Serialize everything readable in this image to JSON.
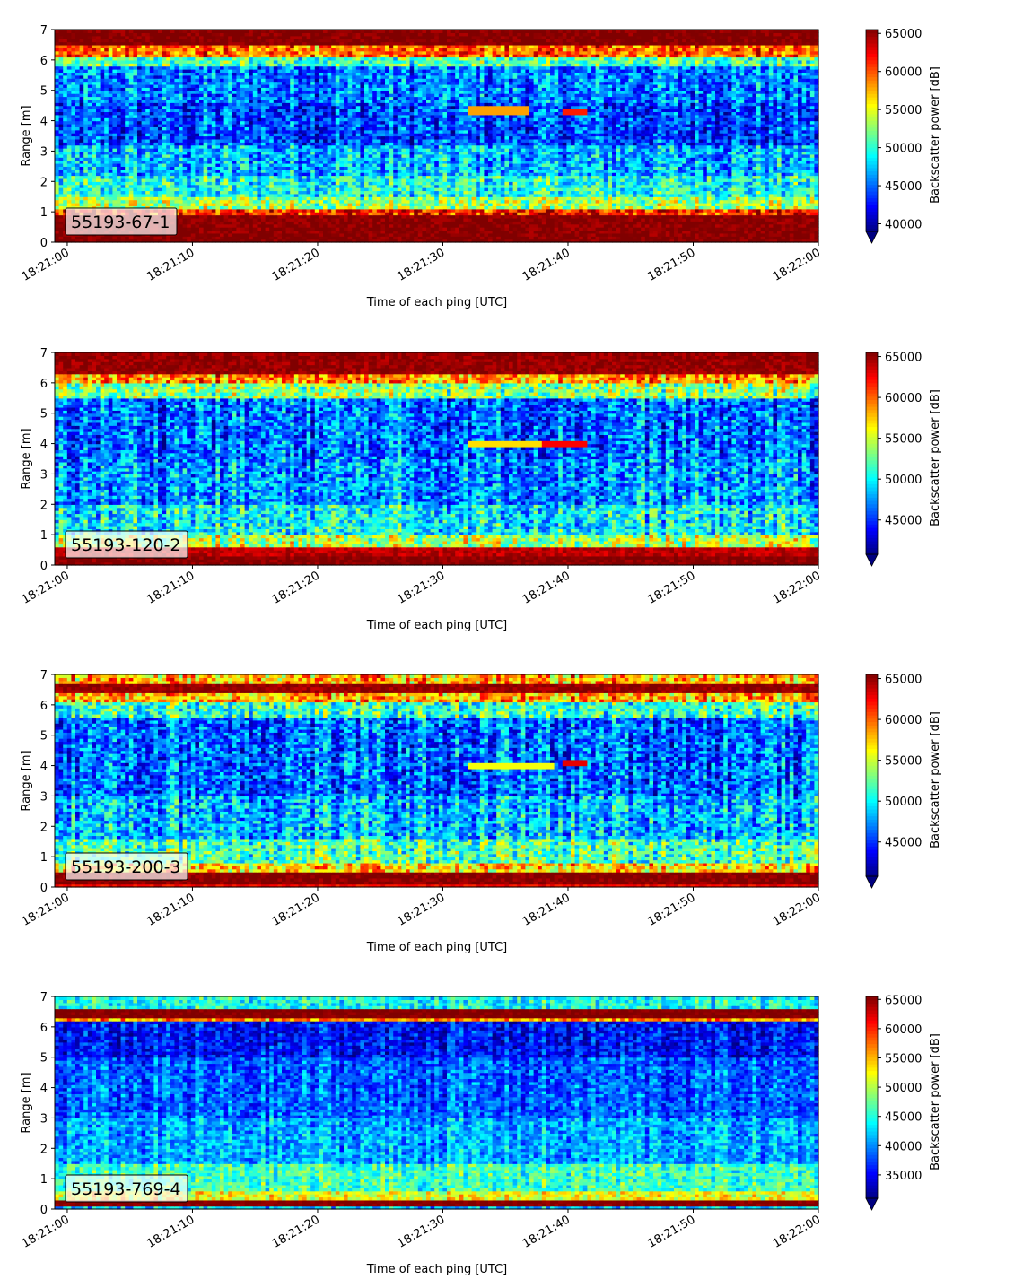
{
  "chart_data": [
    {
      "type": "heatmap",
      "label": "55193-67-1",
      "xlabel": "Time of each ping [UTC]",
      "ylabel": "Range [m]",
      "x_tick_labels": [
        "18:21:00",
        "18:21:10",
        "18:21:20",
        "18:21:30",
        "18:21:40",
        "18:21:50",
        "18:22:00"
      ],
      "y_tick_labels": [
        "0",
        "1",
        "2",
        "3",
        "4",
        "5",
        "6",
        "7"
      ],
      "xlim": [
        "18:20:59",
        "18:22:00"
      ],
      "ylim": [
        0,
        7
      ],
      "colorbar": {
        "label": "Backscatter power [dB]",
        "tick_labels": [
          "40000",
          "45000",
          "50000",
          "55000",
          "60000",
          "65000"
        ],
        "ticks": [
          40000,
          45000,
          50000,
          55000,
          60000,
          65000
        ],
        "vmin": 39000,
        "vmax": 65500,
        "extend": "min",
        "colormap": "jet"
      },
      "bands": [
        {
          "range": [
            0,
            0.25
          ],
          "value": 65000
        },
        {
          "range": [
            0.25,
            0.95
          ],
          "value": 64800
        },
        {
          "range": [
            0.95,
            1.15
          ],
          "value": 61500
        },
        {
          "range": [
            1.15,
            1.5
          ],
          "value": 53000
        },
        {
          "range": [
            1.5,
            2.2
          ],
          "value": 49500
        },
        {
          "range": [
            2.2,
            3.2
          ],
          "value": 47000
        },
        {
          "range": [
            3.2,
            4.6
          ],
          "value": 44000
        },
        {
          "range": [
            4.6,
            5.8
          ],
          "value": 45500
        },
        {
          "range": [
            5.8,
            6.1
          ],
          "value": 51000
        },
        {
          "range": [
            6.1,
            6.5
          ],
          "value": 59500
        },
        {
          "range": [
            6.5,
            7
          ],
          "value": 65000
        }
      ],
      "target": [
        {
          "t_start": "18:21:32",
          "t_end": "18:21:37",
          "range": 4.35,
          "value": 58000
        },
        {
          "t_start": "18:21:39.5",
          "t_end": "18:21:41.5",
          "range": 4.3,
          "value": 61500
        }
      ]
    },
    {
      "type": "heatmap",
      "label": "55193-120-2",
      "xlabel": "Time of each ping [UTC]",
      "ylabel": "Range [m]",
      "x_tick_labels": [
        "18:21:00",
        "18:21:10",
        "18:21:20",
        "18:21:30",
        "18:21:40",
        "18:21:50",
        "18:22:00"
      ],
      "y_tick_labels": [
        "0",
        "1",
        "2",
        "3",
        "4",
        "5",
        "6",
        "7"
      ],
      "xlim": [
        "18:20:59",
        "18:22:00"
      ],
      "ylim": [
        0,
        7
      ],
      "colorbar": {
        "label": "Backscatter power [dB]",
        "tick_labels": [
          "45000",
          "50000",
          "55000",
          "60000",
          "65000"
        ],
        "ticks": [
          45000,
          50000,
          55000,
          60000,
          65000
        ],
        "vmin": 40800,
        "vmax": 65500,
        "extend": "min",
        "colormap": "jet"
      },
      "bands": [
        {
          "range": [
            0,
            0.35
          ],
          "value": 65000
        },
        {
          "range": [
            0.35,
            0.6
          ],
          "value": 63500
        },
        {
          "range": [
            0.6,
            1.0
          ],
          "value": 54500
        },
        {
          "range": [
            1.0,
            2.0
          ],
          "value": 50000
        },
        {
          "range": [
            2.0,
            3.5
          ],
          "value": 47500
        },
        {
          "range": [
            3.5,
            5.5
          ],
          "value": 46500
        },
        {
          "range": [
            5.5,
            6.0
          ],
          "value": 53500
        },
        {
          "range": [
            6.0,
            6.3
          ],
          "value": 59000
        },
        {
          "range": [
            6.3,
            7
          ],
          "value": 64500
        }
      ],
      "target": [
        {
          "t_start": "18:21:32",
          "t_end": "18:21:38",
          "range": 4.05,
          "value": 57000
        },
        {
          "t_start": "18:21:38",
          "t_end": "18:21:41.5",
          "range": 4.0,
          "value": 62500
        }
      ]
    },
    {
      "type": "heatmap",
      "label": "55193-200-3",
      "xlabel": "Time of each ping [UTC]",
      "ylabel": "Range [m]",
      "x_tick_labels": [
        "18:21:00",
        "18:21:10",
        "18:21:20",
        "18:21:30",
        "18:21:40",
        "18:21:50",
        "18:22:00"
      ],
      "y_tick_labels": [
        "0",
        "1",
        "2",
        "3",
        "4",
        "5",
        "6",
        "7"
      ],
      "xlim": [
        "18:20:59",
        "18:22:00"
      ],
      "ylim": [
        0,
        7
      ],
      "colorbar": {
        "label": "Backscatter power [dB]",
        "tick_labels": [
          "45000",
          "50000",
          "55000",
          "60000",
          "65000"
        ],
        "ticks": [
          45000,
          50000,
          55000,
          60000,
          65000
        ],
        "vmin": 40800,
        "vmax": 65500,
        "extend": "min",
        "colormap": "jet"
      },
      "bands": [
        {
          "range": [
            0,
            0.15
          ],
          "value": 62000
        },
        {
          "range": [
            0.15,
            0.45
          ],
          "value": 65000
        },
        {
          "range": [
            0.45,
            0.8
          ],
          "value": 57500
        },
        {
          "range": [
            0.8,
            1.6
          ],
          "value": 52000
        },
        {
          "range": [
            1.6,
            3.0
          ],
          "value": 48500
        },
        {
          "range": [
            3.0,
            5.6
          ],
          "value": 46500
        },
        {
          "range": [
            5.6,
            6.1
          ],
          "value": 51500
        },
        {
          "range": [
            6.1,
            6.4
          ],
          "value": 58500
        },
        {
          "range": [
            6.4,
            6.75
          ],
          "value": 64500
        },
        {
          "range": [
            6.75,
            7
          ],
          "value": 58000
        }
      ],
      "target": [
        {
          "t_start": "18:21:32",
          "t_end": "18:21:39",
          "range": 4.05,
          "value": 56000
        },
        {
          "t_start": "18:21:39.5",
          "t_end": "18:21:41.5",
          "range": 4.1,
          "value": 63000
        }
      ]
    },
    {
      "type": "heatmap",
      "label": "55193-769-4",
      "xlabel": "Time of each ping [UTC]",
      "ylabel": "Range [m]",
      "x_tick_labels": [
        "18:21:00",
        "18:21:10",
        "18:21:20",
        "18:21:30",
        "18:21:40",
        "18:21:50",
        "18:22:00"
      ],
      "y_tick_labels": [
        "0",
        "1",
        "2",
        "3",
        "4",
        "5",
        "6",
        "7"
      ],
      "xlim": [
        "18:20:59",
        "18:22:00"
      ],
      "ylim": [
        0,
        7
      ],
      "colorbar": {
        "label": "Backscatter power [dB]",
        "tick_labels": [
          "35000",
          "40000",
          "45000",
          "50000",
          "55000",
          "60000",
          "65000"
        ],
        "ticks": [
          35000,
          40000,
          45000,
          50000,
          55000,
          60000,
          65000
        ],
        "vmin": 31000,
        "vmax": 65500,
        "extend": "min",
        "colormap": "jet"
      },
      "bands": [
        {
          "range": [
            0,
            0.15
          ],
          "value": 42000
        },
        {
          "range": [
            0.15,
            0.35
          ],
          "value": 65000
        },
        {
          "range": [
            0.35,
            0.6
          ],
          "value": 52000
        },
        {
          "range": [
            0.6,
            1.5
          ],
          "value": 46000
        },
        {
          "range": [
            1.5,
            3.0
          ],
          "value": 41000
        },
        {
          "range": [
            3.0,
            5.0
          ],
          "value": 38500
        },
        {
          "range": [
            5.0,
            6.2
          ],
          "value": 35500
        },
        {
          "range": [
            6.2,
            6.35
          ],
          "value": 56000
        },
        {
          "range": [
            6.35,
            6.6
          ],
          "value": 65000
        },
        {
          "range": [
            6.6,
            7
          ],
          "value": 44500
        }
      ],
      "target": []
    }
  ]
}
